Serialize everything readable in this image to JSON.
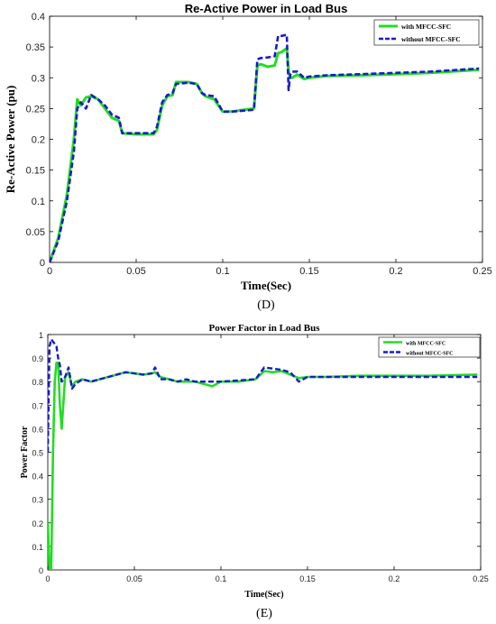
{
  "chart_data": [
    {
      "type": "line",
      "title": "Re-Active Power in Load Bus",
      "xlabel": "Time(Sec)",
      "ylabel": "Re-Active Power (pu)",
      "caption": "(D)",
      "xlim": [
        0,
        0.25
      ],
      "ylim": [
        0,
        0.4
      ],
      "xticks": [
        "0",
        "0.05",
        "0.1",
        "0.15",
        "0.2",
        "0.25"
      ],
      "yticks": [
        "0",
        "0.05",
        "0.1",
        "0.15",
        "0.2",
        "0.25",
        "0.3",
        "0.35",
        "0.4"
      ],
      "grid": false,
      "legend_position": "top-right",
      "series": [
        {
          "name": "with MFCC-SFC",
          "color": "#22dd22",
          "style": "solid",
          "x": [
            0,
            0.005,
            0.01,
            0.014,
            0.016,
            0.018,
            0.021,
            0.024,
            0.028,
            0.032,
            0.036,
            0.04,
            0.042,
            0.05,
            0.06,
            0.062,
            0.065,
            0.068,
            0.071,
            0.073,
            0.08,
            0.085,
            0.088,
            0.09,
            0.095,
            0.1,
            0.105,
            0.11,
            0.118,
            0.12,
            0.122,
            0.126,
            0.13,
            0.132,
            0.134,
            0.137,
            0.138,
            0.139,
            0.14,
            0.143,
            0.147,
            0.15,
            0.16,
            0.18,
            0.2,
            0.22,
            0.248
          ],
          "y": [
            0,
            0.04,
            0.11,
            0.2,
            0.265,
            0.255,
            0.268,
            0.27,
            0.265,
            0.25,
            0.235,
            0.23,
            0.21,
            0.208,
            0.208,
            0.215,
            0.255,
            0.27,
            0.272,
            0.293,
            0.293,
            0.29,
            0.275,
            0.27,
            0.265,
            0.245,
            0.245,
            0.247,
            0.25,
            0.32,
            0.322,
            0.318,
            0.32,
            0.34,
            0.342,
            0.348,
            0.31,
            0.3,
            0.3,
            0.305,
            0.298,
            0.3,
            0.303,
            0.304,
            0.306,
            0.308,
            0.313
          ]
        },
        {
          "name": "without MFCC-SFC",
          "color": "#1a1acc",
          "style": "dashed",
          "x": [
            0,
            0.005,
            0.01,
            0.014,
            0.016,
            0.018,
            0.021,
            0.024,
            0.028,
            0.032,
            0.036,
            0.04,
            0.042,
            0.05,
            0.06,
            0.062,
            0.065,
            0.068,
            0.071,
            0.073,
            0.08,
            0.085,
            0.088,
            0.09,
            0.095,
            0.1,
            0.105,
            0.11,
            0.118,
            0.12,
            0.122,
            0.126,
            0.13,
            0.132,
            0.134,
            0.137,
            0.138,
            0.139,
            0.14,
            0.143,
            0.147,
            0.15,
            0.16,
            0.18,
            0.2,
            0.22,
            0.248
          ],
          "y": [
            0,
            0.035,
            0.1,
            0.18,
            0.25,
            0.26,
            0.25,
            0.272,
            0.265,
            0.255,
            0.24,
            0.235,
            0.21,
            0.21,
            0.21,
            0.22,
            0.26,
            0.272,
            0.275,
            0.29,
            0.292,
            0.29,
            0.275,
            0.272,
            0.27,
            0.245,
            0.245,
            0.246,
            0.248,
            0.33,
            0.332,
            0.333,
            0.335,
            0.368,
            0.368,
            0.37,
            0.28,
            0.305,
            0.31,
            0.31,
            0.3,
            0.302,
            0.304,
            0.306,
            0.308,
            0.31,
            0.315
          ]
        }
      ]
    },
    {
      "type": "line",
      "title": "Power Factor in Load Bus",
      "xlabel": "Time(Sec)",
      "ylabel": "Power Factor",
      "caption": "(E)",
      "xlim": [
        0,
        0.25
      ],
      "ylim": [
        0,
        1
      ],
      "xticks": [
        "0",
        "0.05",
        "0.1",
        "0.15",
        "0.2",
        "0.25"
      ],
      "yticks": [
        "0",
        "0.1",
        "0.2",
        "0.3",
        "0.4",
        "0.5",
        "0.6",
        "0.7",
        "0.8",
        "0.9",
        "1"
      ],
      "grid": false,
      "legend_position": "top-right",
      "series": [
        {
          "name": "with MFCC-SFC",
          "color": "#22dd22",
          "style": "solid",
          "x": [
            0,
            0.001,
            0.002,
            0.003,
            0.004,
            0.005,
            0.006,
            0.007,
            0.008,
            0.01,
            0.012,
            0.014,
            0.016,
            0.02,
            0.025,
            0.03,
            0.035,
            0.04,
            0.045,
            0.05,
            0.055,
            0.06,
            0.062,
            0.065,
            0.07,
            0.075,
            0.08,
            0.085,
            0.09,
            0.095,
            0.1,
            0.11,
            0.12,
            0.125,
            0.13,
            0.135,
            0.14,
            0.145,
            0.15,
            0.16,
            0.18,
            0.2,
            0.22,
            0.248
          ],
          "y": [
            0.2,
            0.0,
            0.0,
            0.5,
            0.8,
            0.88,
            0.88,
            0.7,
            0.6,
            0.82,
            0.84,
            0.78,
            0.8,
            0.81,
            0.8,
            0.81,
            0.82,
            0.83,
            0.84,
            0.835,
            0.83,
            0.835,
            0.84,
            0.82,
            0.81,
            0.8,
            0.8,
            0.8,
            0.79,
            0.78,
            0.8,
            0.8,
            0.81,
            0.845,
            0.84,
            0.845,
            0.83,
            0.815,
            0.82,
            0.82,
            0.825,
            0.825,
            0.825,
            0.83
          ]
        },
        {
          "name": "without MFCC-SFC",
          "color": "#1a1acc",
          "style": "dashed",
          "x": [
            0,
            0.001,
            0.002,
            0.003,
            0.004,
            0.005,
            0.006,
            0.007,
            0.008,
            0.01,
            0.012,
            0.014,
            0.016,
            0.02,
            0.025,
            0.03,
            0.035,
            0.04,
            0.045,
            0.05,
            0.055,
            0.06,
            0.062,
            0.065,
            0.07,
            0.075,
            0.08,
            0.085,
            0.09,
            0.095,
            0.1,
            0.11,
            0.12,
            0.125,
            0.13,
            0.135,
            0.14,
            0.145,
            0.15,
            0.16,
            0.18,
            0.2,
            0.22,
            0.248
          ],
          "y": [
            0.5,
            0.95,
            0.98,
            0.97,
            0.96,
            0.95,
            0.9,
            0.87,
            0.8,
            0.82,
            0.86,
            0.77,
            0.79,
            0.81,
            0.8,
            0.81,
            0.82,
            0.83,
            0.84,
            0.835,
            0.83,
            0.835,
            0.86,
            0.81,
            0.81,
            0.8,
            0.81,
            0.8,
            0.8,
            0.8,
            0.8,
            0.805,
            0.81,
            0.86,
            0.855,
            0.85,
            0.84,
            0.8,
            0.82,
            0.82,
            0.82,
            0.82,
            0.82,
            0.82
          ]
        }
      ]
    }
  ]
}
